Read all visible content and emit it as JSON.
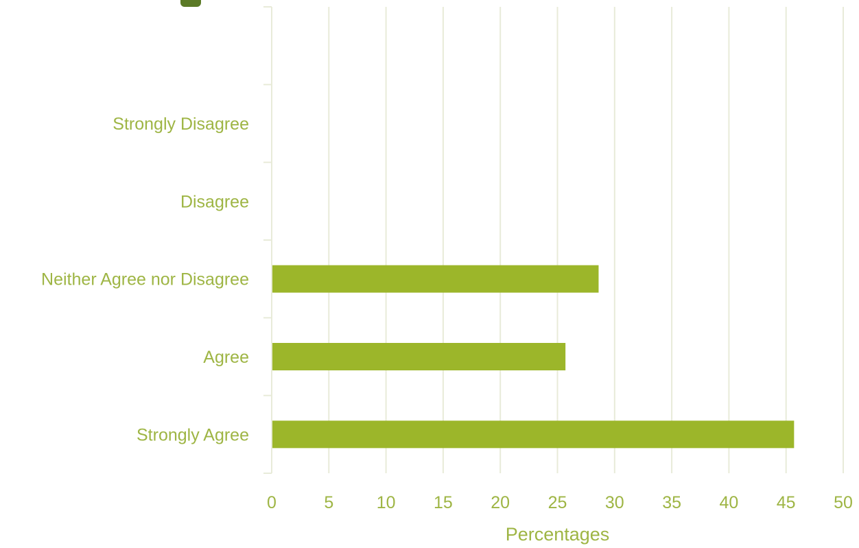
{
  "chart_data": {
    "type": "bar",
    "orientation": "horizontal",
    "categories": [
      "Strongly Agree",
      "Agree",
      "Neither Agree nor Disagree",
      "Disagree",
      "Strongly Disagree",
      ""
    ],
    "values": [
      45.7,
      25.7,
      28.6,
      0,
      0,
      null
    ],
    "xlabel": "Percentages",
    "xlim": [
      0,
      50
    ],
    "xticks": [
      "0",
      "5",
      "10",
      "15",
      "20",
      "25",
      "30",
      "35",
      "40",
      "45",
      "50"
    ],
    "grid": true,
    "bar_color": "#9cb62a",
    "text_color": "#9eb544",
    "legend": "none"
  }
}
